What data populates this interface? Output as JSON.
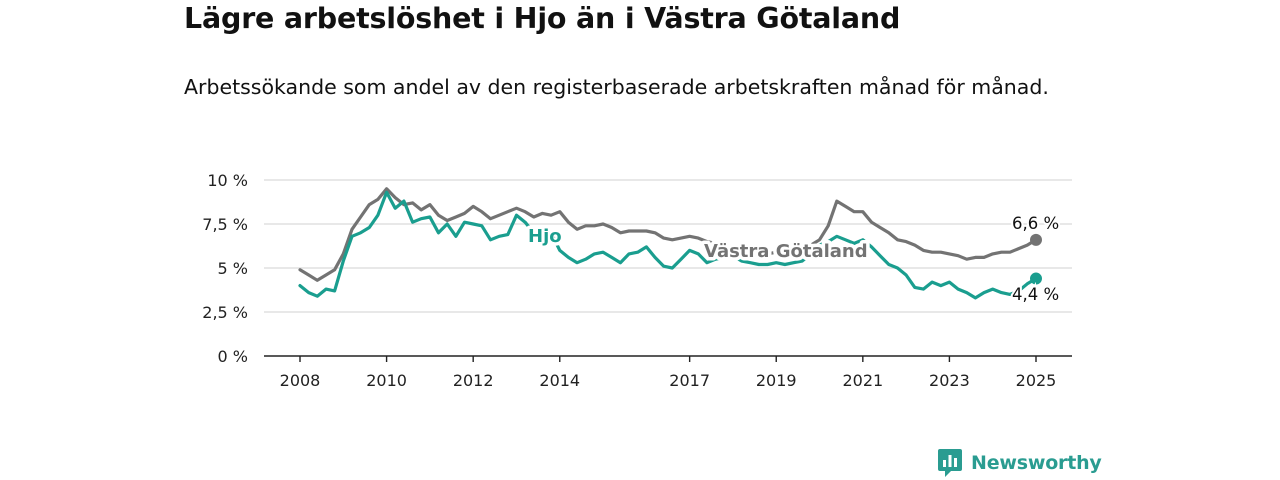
{
  "header": {
    "title": "Lägre arbetslöshet i Hjo än i Västra Götaland",
    "subtitle": "Arbetssökande som andel av den registerbaserade arbetskraften månad för månad."
  },
  "brand": {
    "name": "Newsworthy"
  },
  "colors": {
    "hjo": "#1a9e8f",
    "vg": "#737373",
    "grid": "#d9d9d9",
    "axis": "#222222",
    "brand": "#2a9c91"
  },
  "chart_data": {
    "type": "line",
    "title": "Lägre arbetslöshet i Hjo än i Västra Götaland",
    "subtitle": "Arbetssökande som andel av den registerbaserade arbetskraften månad för månad.",
    "xlabel": "",
    "ylabel": "",
    "xlim": [
      2007.5,
      2025.8
    ],
    "ylim": [
      0,
      10
    ],
    "y_ticks": [
      {
        "value": 0,
        "label": "0 %"
      },
      {
        "value": 2.5,
        "label": "2,5 %"
      },
      {
        "value": 5,
        "label": "5 %"
      },
      {
        "value": 7.5,
        "label": "7,5 %"
      },
      {
        "value": 10,
        "label": "10 %"
      }
    ],
    "x_ticks": [
      {
        "value": 2008,
        "label": "2008"
      },
      {
        "value": 2010,
        "label": "2010"
      },
      {
        "value": 2012,
        "label": "2012"
      },
      {
        "value": 2014,
        "label": "2014"
      },
      {
        "value": 2017,
        "label": "2017"
      },
      {
        "value": 2019,
        "label": "2019"
      },
      {
        "value": 2021,
        "label": "2021"
      },
      {
        "value": 2023,
        "label": "2023"
      },
      {
        "value": 2025,
        "label": "2025"
      }
    ],
    "grid": true,
    "series": [
      {
        "name": "Västra Götaland",
        "label": "Västra Götaland",
        "end_label": "6,6 %",
        "end_value": 6.6,
        "x": [
          2008.0,
          2008.2,
          2008.4,
          2008.6,
          2008.8,
          2009.0,
          2009.2,
          2009.4,
          2009.6,
          2009.8,
          2010.0,
          2010.2,
          2010.4,
          2010.6,
          2010.8,
          2011.0,
          2011.2,
          2011.4,
          2011.6,
          2011.8,
          2012.0,
          2012.2,
          2012.4,
          2012.6,
          2012.8,
          2013.0,
          2013.2,
          2013.4,
          2013.6,
          2013.8,
          2014.0,
          2014.2,
          2014.4,
          2014.6,
          2014.8,
          2015.0,
          2015.2,
          2015.4,
          2015.6,
          2015.8,
          2016.0,
          2016.2,
          2016.4,
          2016.6,
          2016.8,
          2017.0,
          2017.2,
          2017.4,
          2017.6,
          2017.8,
          2018.0,
          2018.2,
          2018.4,
          2018.6,
          2018.8,
          2019.0,
          2019.2,
          2019.4,
          2019.6,
          2019.8,
          2020.0,
          2020.2,
          2020.4,
          2020.6,
          2020.8,
          2021.0,
          2021.2,
          2021.4,
          2021.6,
          2021.8,
          2022.0,
          2022.2,
          2022.4,
          2022.6,
          2022.8,
          2023.0,
          2023.2,
          2023.4,
          2023.6,
          2023.8,
          2024.0,
          2024.2,
          2024.4,
          2024.6,
          2024.8,
          2025.0
        ],
        "values": [
          4.9,
          4.6,
          4.3,
          4.6,
          4.9,
          5.8,
          7.2,
          7.9,
          8.6,
          8.9,
          9.5,
          9.0,
          8.6,
          8.7,
          8.3,
          8.6,
          8.0,
          7.7,
          7.9,
          8.1,
          8.5,
          8.2,
          7.8,
          8.0,
          8.2,
          8.4,
          8.2,
          7.9,
          8.1,
          8.0,
          8.2,
          7.6,
          7.2,
          7.4,
          7.4,
          7.5,
          7.3,
          7.0,
          7.1,
          7.1,
          7.1,
          7.0,
          6.7,
          6.6,
          6.7,
          6.8,
          6.7,
          6.5,
          6.4,
          6.2,
          6.0,
          5.8,
          5.8,
          5.7,
          5.8,
          5.9,
          5.9,
          6.0,
          6.1,
          6.3,
          6.6,
          7.4,
          8.8,
          8.5,
          8.2,
          8.2,
          7.6,
          7.3,
          7.0,
          6.6,
          6.5,
          6.3,
          6.0,
          5.9,
          5.9,
          5.8,
          5.7,
          5.5,
          5.6,
          5.6,
          5.8,
          5.9,
          5.9,
          6.1,
          6.3,
          6.6
        ]
      },
      {
        "name": "Hjo",
        "label": "Hjo",
        "end_label": "4,4 %",
        "end_value": 4.4,
        "x": [
          2008.0,
          2008.2,
          2008.4,
          2008.6,
          2008.8,
          2009.0,
          2009.2,
          2009.4,
          2009.6,
          2009.8,
          2010.0,
          2010.2,
          2010.4,
          2010.6,
          2010.8,
          2011.0,
          2011.2,
          2011.4,
          2011.6,
          2011.8,
          2012.0,
          2012.2,
          2012.4,
          2012.6,
          2012.8,
          2013.0,
          2013.2,
          2013.4,
          2013.6,
          2013.8,
          2014.0,
          2014.2,
          2014.4,
          2014.6,
          2014.8,
          2015.0,
          2015.2,
          2015.4,
          2015.6,
          2015.8,
          2016.0,
          2016.2,
          2016.4,
          2016.6,
          2016.8,
          2017.0,
          2017.2,
          2017.4,
          2017.6,
          2017.8,
          2018.0,
          2018.2,
          2018.4,
          2018.6,
          2018.8,
          2019.0,
          2019.2,
          2019.4,
          2019.6,
          2019.8,
          2020.0,
          2020.2,
          2020.4,
          2020.6,
          2020.8,
          2021.0,
          2021.2,
          2021.4,
          2021.6,
          2021.8,
          2022.0,
          2022.2,
          2022.4,
          2022.6,
          2022.8,
          2023.0,
          2023.2,
          2023.4,
          2023.6,
          2023.8,
          2024.0,
          2024.2,
          2024.4,
          2024.6,
          2024.8,
          2025.0
        ],
        "values": [
          4.0,
          3.6,
          3.4,
          3.8,
          3.7,
          5.4,
          6.8,
          7.0,
          7.3,
          8.0,
          9.3,
          8.4,
          8.8,
          7.6,
          7.8,
          7.9,
          7.0,
          7.5,
          6.8,
          7.6,
          7.5,
          7.4,
          6.6,
          6.8,
          6.9,
          8.0,
          7.6,
          7.0,
          6.8,
          7.0,
          6.0,
          5.6,
          5.3,
          5.5,
          5.8,
          5.9,
          5.6,
          5.3,
          5.8,
          5.9,
          6.2,
          5.6,
          5.1,
          5.0,
          5.5,
          6.0,
          5.8,
          5.3,
          5.5,
          5.6,
          5.7,
          5.4,
          5.3,
          5.2,
          5.2,
          5.3,
          5.2,
          5.3,
          5.4,
          5.8,
          6.3,
          6.5,
          6.8,
          6.6,
          6.4,
          6.6,
          6.2,
          5.7,
          5.2,
          5.0,
          4.6,
          3.9,
          3.8,
          4.2,
          4.0,
          4.2,
          3.8,
          3.6,
          3.3,
          3.6,
          3.8,
          3.6,
          3.5,
          3.7,
          4.1,
          4.4
        ]
      }
    ]
  }
}
